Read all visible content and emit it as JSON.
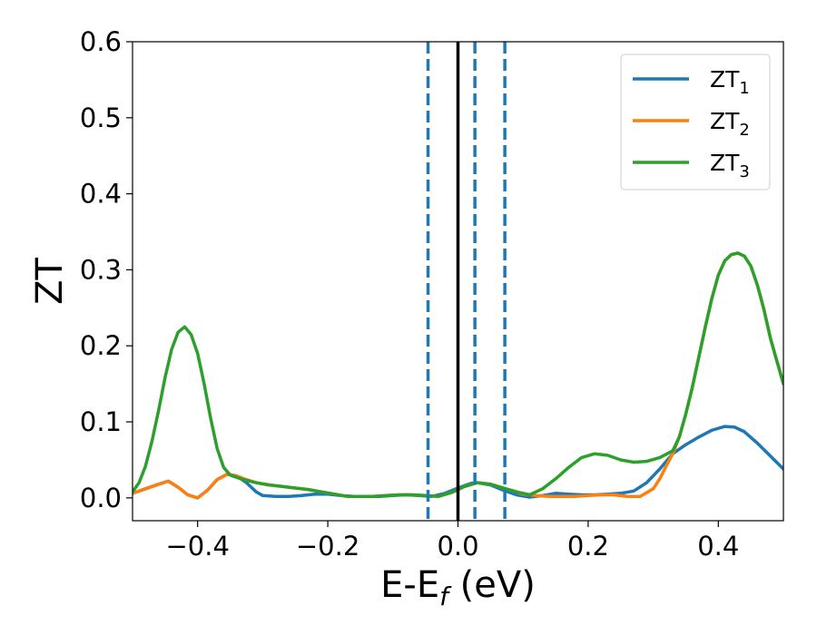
{
  "chart_data": {
    "type": "line",
    "xlabel_main": "E-E",
    "xlabel_sub": "f",
    "xlabel_unit": " (eV)",
    "ylabel": "ZT",
    "xlim": [
      -0.5,
      0.5
    ],
    "ylim": [
      -0.03,
      0.6
    ],
    "x_ticks": [
      -0.4,
      -0.2,
      0.0,
      0.2,
      0.4
    ],
    "x_tick_labels": [
      "−0.4",
      "−0.2",
      "0.0",
      "0.2",
      "0.4"
    ],
    "y_ticks": [
      0.0,
      0.1,
      0.2,
      0.3,
      0.4,
      0.5,
      0.6
    ],
    "y_tick_labels": [
      "0.0",
      "0.1",
      "0.2",
      "0.3",
      "0.4",
      "0.5",
      "0.6"
    ],
    "grid": false,
    "legend_position": "top-right",
    "vertical_lines": [
      {
        "x": 0.0,
        "style": "solid",
        "color": "#000000"
      },
      {
        "x": -0.046,
        "style": "dashed",
        "color": "#1f77b4"
      },
      {
        "x": 0.026,
        "style": "dashed",
        "color": "#1f77b4"
      },
      {
        "x": 0.072,
        "style": "dashed",
        "color": "#1f77b4"
      }
    ],
    "series": [
      {
        "name_main": "ZT",
        "name_sub": "1",
        "color": "#1f77b4",
        "points": [
          [
            -0.5,
            0.006
          ],
          [
            -0.48,
            0.012
          ],
          [
            -0.46,
            0.018
          ],
          [
            -0.445,
            0.022
          ],
          [
            -0.43,
            0.014
          ],
          [
            -0.415,
            0.004
          ],
          [
            -0.4,
            0.0
          ],
          [
            -0.385,
            0.01
          ],
          [
            -0.37,
            0.024
          ],
          [
            -0.355,
            0.031
          ],
          [
            -0.34,
            0.029
          ],
          [
            -0.325,
            0.02
          ],
          [
            -0.31,
            0.008
          ],
          [
            -0.3,
            0.003
          ],
          [
            -0.28,
            0.002
          ],
          [
            -0.26,
            0.002
          ],
          [
            -0.24,
            0.003
          ],
          [
            -0.22,
            0.005
          ],
          [
            -0.2,
            0.005
          ],
          [
            -0.18,
            0.003
          ],
          [
            -0.16,
            0.002
          ],
          [
            -0.14,
            0.002
          ],
          [
            -0.12,
            0.002
          ],
          [
            -0.1,
            0.003
          ],
          [
            -0.08,
            0.004
          ],
          [
            -0.06,
            0.003
          ],
          [
            -0.04,
            0.002
          ],
          [
            -0.02,
            0.006
          ],
          [
            0.0,
            0.013
          ],
          [
            0.02,
            0.019
          ],
          [
            0.03,
            0.02
          ],
          [
            0.05,
            0.017
          ],
          [
            0.07,
            0.01
          ],
          [
            0.09,
            0.004
          ],
          [
            0.11,
            0.001
          ],
          [
            0.13,
            0.003
          ],
          [
            0.15,
            0.006
          ],
          [
            0.17,
            0.005
          ],
          [
            0.19,
            0.004
          ],
          [
            0.21,
            0.004
          ],
          [
            0.23,
            0.005
          ],
          [
            0.25,
            0.006
          ],
          [
            0.27,
            0.009
          ],
          [
            0.29,
            0.02
          ],
          [
            0.31,
            0.038
          ],
          [
            0.33,
            0.058
          ],
          [
            0.35,
            0.07
          ],
          [
            0.37,
            0.08
          ],
          [
            0.39,
            0.089
          ],
          [
            0.41,
            0.094
          ],
          [
            0.425,
            0.093
          ],
          [
            0.44,
            0.087
          ],
          [
            0.46,
            0.072
          ],
          [
            0.48,
            0.055
          ],
          [
            0.5,
            0.038
          ]
        ]
      },
      {
        "name_main": "ZT",
        "name_sub": "2",
        "color": "#ff7f0e",
        "points": [
          [
            -0.5,
            0.006
          ],
          [
            -0.48,
            0.012
          ],
          [
            -0.46,
            0.018
          ],
          [
            -0.445,
            0.022
          ],
          [
            -0.43,
            0.014
          ],
          [
            -0.415,
            0.004
          ],
          [
            -0.4,
            0.0
          ],
          [
            -0.385,
            0.01
          ],
          [
            -0.37,
            0.024
          ],
          [
            -0.355,
            0.031
          ],
          [
            -0.34,
            0.029
          ],
          [
            -0.325,
            0.024
          ],
          [
            -0.31,
            0.02
          ],
          [
            -0.29,
            0.017
          ],
          [
            -0.27,
            0.015
          ],
          [
            -0.25,
            0.013
          ],
          [
            -0.23,
            0.011
          ],
          [
            -0.21,
            0.008
          ],
          [
            -0.19,
            0.005
          ],
          [
            -0.17,
            0.002
          ],
          [
            -0.15,
            0.002
          ],
          [
            -0.13,
            0.002
          ],
          [
            -0.11,
            0.003
          ],
          [
            -0.09,
            0.004
          ],
          [
            -0.07,
            0.004
          ],
          [
            -0.05,
            0.003
          ],
          [
            -0.03,
            0.002
          ],
          [
            -0.01,
            0.007
          ],
          [
            0.01,
            0.015
          ],
          [
            0.03,
            0.02
          ],
          [
            0.05,
            0.018
          ],
          [
            0.07,
            0.013
          ],
          [
            0.09,
            0.008
          ],
          [
            0.1,
            0.005
          ],
          [
            0.12,
            0.003
          ],
          [
            0.14,
            0.002
          ],
          [
            0.16,
            0.002
          ],
          [
            0.18,
            0.002
          ],
          [
            0.2,
            0.003
          ],
          [
            0.22,
            0.004
          ],
          [
            0.24,
            0.004
          ],
          [
            0.26,
            0.002
          ],
          [
            0.28,
            0.002
          ],
          [
            0.3,
            0.012
          ],
          [
            0.31,
            0.025
          ],
          [
            0.32,
            0.042
          ],
          [
            0.33,
            0.058
          ],
          [
            0.34,
            0.08
          ],
          [
            0.35,
            0.11
          ],
          [
            0.36,
            0.145
          ],
          [
            0.37,
            0.185
          ],
          [
            0.38,
            0.225
          ],
          [
            0.39,
            0.262
          ],
          [
            0.4,
            0.293
          ],
          [
            0.41,
            0.312
          ],
          [
            0.42,
            0.32
          ],
          [
            0.43,
            0.322
          ],
          [
            0.44,
            0.318
          ],
          [
            0.45,
            0.305
          ],
          [
            0.46,
            0.28
          ],
          [
            0.47,
            0.248
          ],
          [
            0.48,
            0.21
          ],
          [
            0.49,
            0.18
          ],
          [
            0.5,
            0.15
          ]
        ]
      },
      {
        "name_main": "ZT",
        "name_sub": "3",
        "color": "#2ca02c",
        "points": [
          [
            -0.5,
            0.008
          ],
          [
            -0.49,
            0.02
          ],
          [
            -0.48,
            0.042
          ],
          [
            -0.47,
            0.075
          ],
          [
            -0.46,
            0.115
          ],
          [
            -0.45,
            0.158
          ],
          [
            -0.44,
            0.195
          ],
          [
            -0.43,
            0.218
          ],
          [
            -0.42,
            0.225
          ],
          [
            -0.41,
            0.215
          ],
          [
            -0.4,
            0.19
          ],
          [
            -0.39,
            0.15
          ],
          [
            -0.38,
            0.105
          ],
          [
            -0.37,
            0.065
          ],
          [
            -0.36,
            0.04
          ],
          [
            -0.35,
            0.03
          ],
          [
            -0.33,
            0.024
          ],
          [
            -0.31,
            0.02
          ],
          [
            -0.29,
            0.017
          ],
          [
            -0.27,
            0.015
          ],
          [
            -0.25,
            0.013
          ],
          [
            -0.23,
            0.011
          ],
          [
            -0.21,
            0.008
          ],
          [
            -0.19,
            0.005
          ],
          [
            -0.17,
            0.002
          ],
          [
            -0.15,
            0.002
          ],
          [
            -0.13,
            0.002
          ],
          [
            -0.11,
            0.003
          ],
          [
            -0.09,
            0.004
          ],
          [
            -0.07,
            0.004
          ],
          [
            -0.05,
            0.003
          ],
          [
            -0.03,
            0.002
          ],
          [
            -0.01,
            0.007
          ],
          [
            0.01,
            0.015
          ],
          [
            0.03,
            0.02
          ],
          [
            0.05,
            0.018
          ],
          [
            0.07,
            0.013
          ],
          [
            0.09,
            0.008
          ],
          [
            0.11,
            0.004
          ],
          [
            0.13,
            0.012
          ],
          [
            0.15,
            0.025
          ],
          [
            0.17,
            0.04
          ],
          [
            0.19,
            0.053
          ],
          [
            0.21,
            0.058
          ],
          [
            0.23,
            0.056
          ],
          [
            0.25,
            0.05
          ],
          [
            0.27,
            0.047
          ],
          [
            0.29,
            0.048
          ],
          [
            0.31,
            0.053
          ],
          [
            0.33,
            0.062
          ],
          [
            0.34,
            0.08
          ],
          [
            0.35,
            0.11
          ],
          [
            0.36,
            0.145
          ],
          [
            0.37,
            0.185
          ],
          [
            0.38,
            0.225
          ],
          [
            0.39,
            0.262
          ],
          [
            0.4,
            0.293
          ],
          [
            0.41,
            0.312
          ],
          [
            0.42,
            0.32
          ],
          [
            0.43,
            0.322
          ],
          [
            0.44,
            0.318
          ],
          [
            0.45,
            0.305
          ],
          [
            0.46,
            0.28
          ],
          [
            0.47,
            0.248
          ],
          [
            0.48,
            0.21
          ],
          [
            0.49,
            0.18
          ],
          [
            0.5,
            0.15
          ]
        ]
      }
    ]
  }
}
